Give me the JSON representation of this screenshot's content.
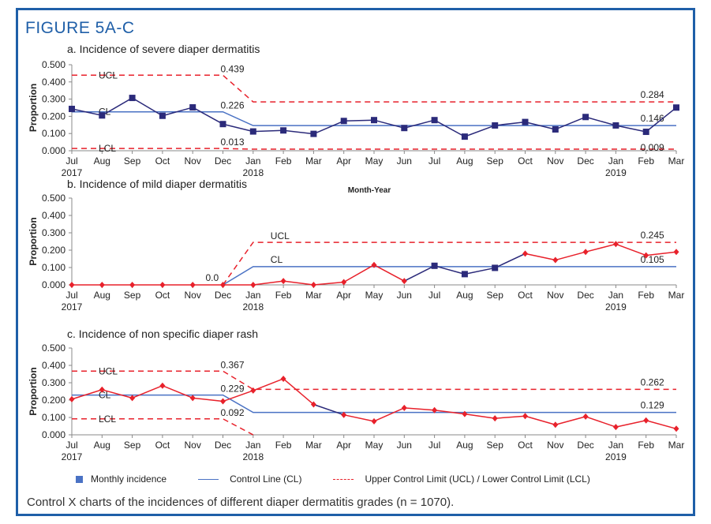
{
  "figure_title": "FIGURE 5A-C",
  "caption": "Control X charts of the incidences of different diaper dermatitis grades (n = 1070).",
  "legend": {
    "monthly": "Monthly incidence",
    "control": "Control Line (CL)",
    "limits": "Upper Control Limit (UCL) / Lower Control Limit (LCL)"
  },
  "colors": {
    "frame": "#1f5fa8",
    "navy": "#2b2a7a",
    "red": "#e8212b",
    "cl": "#4a72c4"
  },
  "chart_data": [
    {
      "type": "line",
      "title": "a. Incidence of severe diaper dermatitis",
      "ylabel": "Proportion",
      "xlabel": "Month-Year",
      "ylim": [
        0,
        0.5
      ],
      "yticks": [
        "0.000",
        "0.100",
        "0.200",
        "0.300",
        "0.400",
        "0.500"
      ],
      "categories": [
        "Jul",
        "Aug",
        "Sep",
        "Oct",
        "Nov",
        "Dec",
        "Jan",
        "Feb",
        "Mar",
        "Apr",
        "May",
        "Jun",
        "Jul",
        "Aug",
        "Sep",
        "Oct",
        "Nov",
        "Dec",
        "Jan",
        "Feb",
        "Mar"
      ],
      "years": {
        "0": "2017",
        "6": "2018",
        "18": "2019"
      },
      "values": [
        0.243,
        0.205,
        0.307,
        0.203,
        0.252,
        0.155,
        0.112,
        0.118,
        0.098,
        0.173,
        0.178,
        0.132,
        0.178,
        0.082,
        0.147,
        0.167,
        0.124,
        0.196,
        0.147,
        0.11,
        0.251
      ],
      "markers": "square",
      "ucl": {
        "before": 0.439,
        "after": 0.284
      },
      "cl": {
        "before": 0.226,
        "after": 0.146
      },
      "lcl": {
        "before": 0.013,
        "after": 0.009
      },
      "labels": {
        "ucl": "UCL",
        "cl": "CL",
        "lcl": "LCL",
        "ucl_before": "0.439",
        "cl_before": "0.226",
        "lcl_before": "0.013",
        "ucl_after": "0.284",
        "cl_after": "0.146",
        "lcl_after": "0.009"
      }
    },
    {
      "type": "line",
      "title": "b. Incidence of mild diaper dermatitis",
      "ylabel": "Proportion",
      "ylim": [
        0,
        0.5
      ],
      "yticks": [
        "0.000",
        "0.100",
        "0.200",
        "0.300",
        "0.400",
        "0.500"
      ],
      "categories": [
        "Jul",
        "Aug",
        "Sep",
        "Oct",
        "Nov",
        "Dec",
        "Jan",
        "Feb",
        "Mar",
        "Apr",
        "May",
        "Jun",
        "Jul",
        "Aug",
        "Sep",
        "Oct",
        "Nov",
        "Dec",
        "Jan",
        "Feb",
        "Mar"
      ],
      "years": {
        "0": "2017",
        "6": "2018",
        "18": "2019"
      },
      "values": [
        0,
        0,
        0,
        0,
        0,
        0,
        0,
        0.022,
        0,
        0.016,
        0.115,
        0.022,
        0.11,
        0.062,
        0.098,
        0.18,
        0.143,
        0.19,
        0.235,
        0.17,
        0.19
      ],
      "blue_points": [
        12,
        13,
        14
      ],
      "markers": "diamond",
      "ucl": {
        "before": 0.0,
        "after": 0.245
      },
      "cl": {
        "before": 0.0,
        "after": 0.105
      },
      "labels": {
        "ucl": "UCL",
        "cl": "CL",
        "cl_before": "0.0",
        "ucl_after": "0.245",
        "cl_after": "0.105"
      }
    },
    {
      "type": "line",
      "title": "c. Incidence of non specific diaper rash",
      "ylabel": "Proportion",
      "ylim": [
        0,
        0.5
      ],
      "yticks": [
        "0.000",
        "0.100",
        "0.200",
        "0.300",
        "0.400",
        "0.500"
      ],
      "categories": [
        "Jul",
        "Aug",
        "Sep",
        "Oct",
        "Nov",
        "Dec",
        "Jan",
        "Feb",
        "Mar",
        "Apr",
        "May",
        "Jun",
        "Jul",
        "Aug",
        "Sep",
        "Oct",
        "Nov",
        "Dec",
        "Jan",
        "Feb",
        "Mar"
      ],
      "years": {
        "0": "2017",
        "6": "2018",
        "18": "2019"
      },
      "values": [
        0.205,
        0.26,
        0.212,
        0.283,
        0.212,
        0.193,
        0.255,
        0.323,
        0.175,
        0.115,
        0.078,
        0.155,
        0.142,
        0.12,
        0.095,
        0.108,
        0.058,
        0.105,
        0.045,
        0.083,
        0.035
      ],
      "blue_segments": [
        8
      ],
      "markers": "diamond",
      "ucl": {
        "before": 0.367,
        "after": 0.262
      },
      "cl": {
        "before": 0.229,
        "after": 0.129
      },
      "lcl": {
        "before": 0.092,
        "after": 0.0
      },
      "labels": {
        "ucl": "UCL",
        "cl": "CL",
        "lcl": "LCL",
        "ucl_before": "0.367",
        "cl_before": "0.229",
        "lcl_before": "0.092",
        "ucl_after": "0.262",
        "cl_after": "0.129"
      }
    }
  ]
}
